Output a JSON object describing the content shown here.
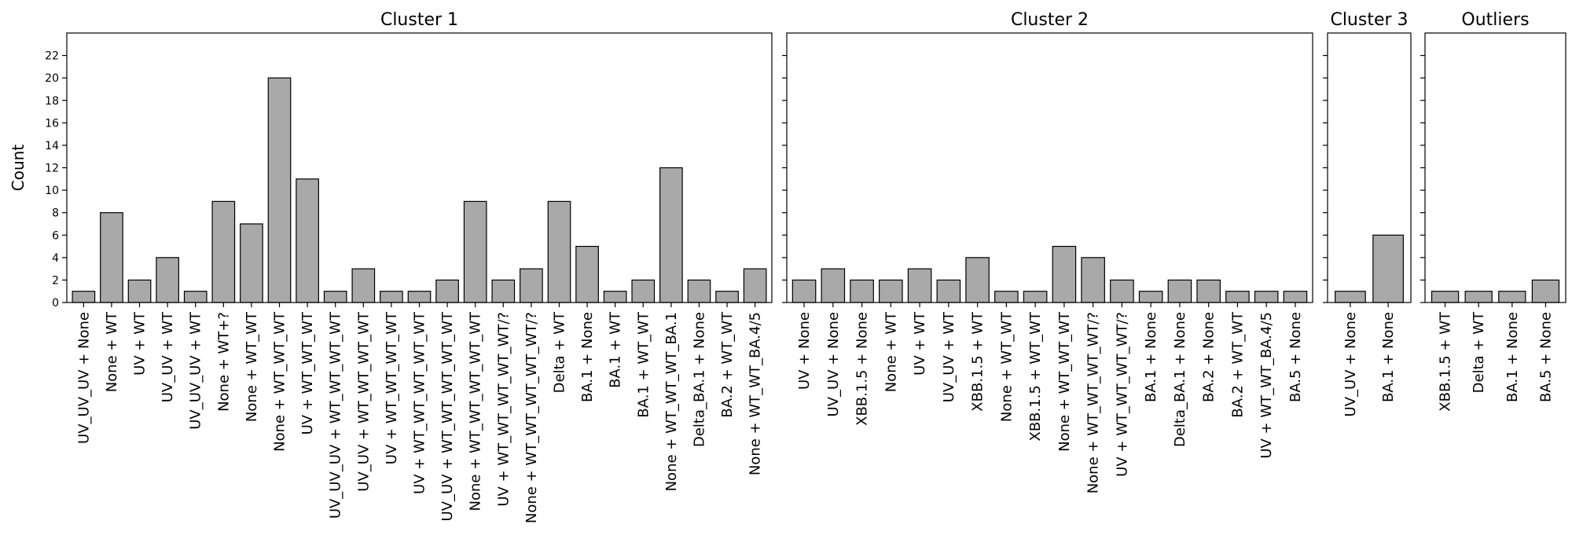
{
  "chart_data": [
    {
      "type": "bar",
      "title": "Cluster 1",
      "ylabel": "Count",
      "ylim": [
        0,
        24
      ],
      "yticks": [
        0,
        2,
        4,
        6,
        8,
        10,
        12,
        14,
        16,
        18,
        20,
        22
      ],
      "categories": [
        "UV_UV_UV + None",
        "None + WT",
        "UV + WT",
        "UV_UV + WT",
        "UV_UV_UV + WT",
        "None + WT+?",
        "None + WT_WT",
        "None + WT_WT_WT",
        "UV + WT_WT_WT",
        "UV_UV_UV + WT_WT_WT_WT",
        "UV_UV + WT_WT_WT_WT",
        "UV + WT_WT_WT_WT",
        "UV + WT_WT_WT_WT_WT",
        "UV_UV + WT_WT_WT_WT_WT",
        "None + WT_WT_WT_WT_WT",
        "UV + WT_WT_WT_WT_WT/?",
        "None + WT_WT_WT_WT_WT/?",
        "Delta + WT",
        "BA.1 + None",
        "BA.1 + WT",
        "BA.1 + WT_WT",
        "None + WT_WT_WT_BA.1",
        "Delta_BA.1 + None",
        "BA.2 + WT_WT",
        "None + WT_WT_BA.4/5"
      ],
      "values": [
        1,
        8,
        2,
        4,
        1,
        9,
        7,
        20,
        11,
        1,
        3,
        1,
        1,
        2,
        9,
        2,
        3,
        9,
        5,
        1,
        2,
        12,
        2,
        1,
        3
      ]
    },
    {
      "type": "bar",
      "title": "Cluster 2",
      "ylim": [
        0,
        24
      ],
      "categories": [
        "UV + None",
        "UV_UV + None",
        "XBB.1.5 + None",
        "None + WT",
        "UV + WT",
        "UV_UV + WT",
        "XBB.1.5 + WT",
        "None + WT_WT",
        "XBB.1.5 + WT_WT",
        "None + WT_WT_WT",
        "None + WT_WT_WT_WT/?",
        "UV + WT_WT_WT_WT/?",
        "BA.1 + None",
        "Delta_BA.1 + None",
        "BA.2 + None",
        "BA.2 + WT_WT",
        "UV + WT_WT_BA.4/5",
        "BA.5 + None"
      ],
      "values": [
        2,
        3,
        2,
        2,
        3,
        2,
        4,
        1,
        1,
        5,
        4,
        2,
        1,
        2,
        2,
        1,
        1,
        1
      ]
    },
    {
      "type": "bar",
      "title": "Cluster 3",
      "ylim": [
        0,
        24
      ],
      "categories": [
        "UV_UV + None",
        "BA.1 + None"
      ],
      "values": [
        1,
        6
      ]
    },
    {
      "type": "bar",
      "title": "Outliers",
      "ylim": [
        0,
        24
      ],
      "categories": [
        "XBB.1.5 + WT",
        "Delta + WT",
        "BA.1 + None",
        "BA.5 + None"
      ],
      "values": [
        1,
        1,
        1,
        2
      ]
    }
  ]
}
